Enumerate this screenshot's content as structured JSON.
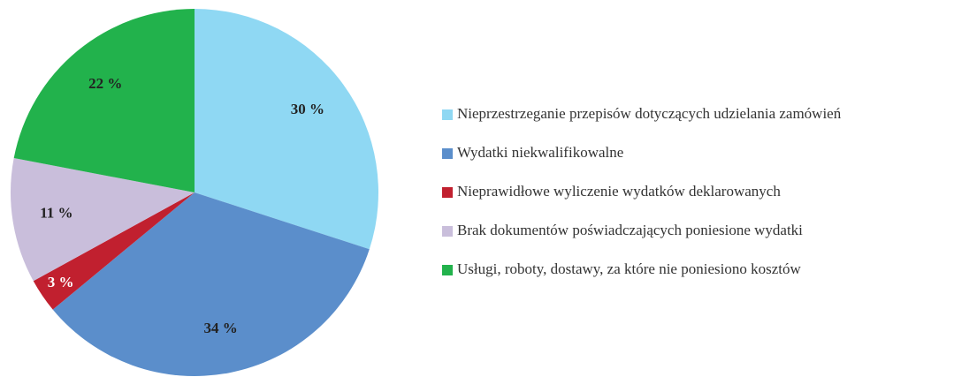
{
  "chart_data": {
    "type": "pie",
    "categories": [
      "Nieprzestrzeganie przepisów dotyczących udzielania zamówień",
      "Wydatki niekwalifikowalne",
      "Nieprawidłowe wyliczenie wydatków deklarowanych",
      "Brak dokumentów poświadczających poniesione wydatki",
      "Usługi, roboty, dostawy, za które nie poniesiono kosztów"
    ],
    "values": [
      30,
      34,
      3,
      11,
      22
    ],
    "value_labels": [
      "30 %",
      "34 %",
      "3 %",
      "11 %",
      "22 %"
    ],
    "colors": [
      "#8fd8f3",
      "#5b8ecb",
      "#c1202f",
      "#c9bedb",
      "#22b24c"
    ],
    "legend": "right"
  }
}
